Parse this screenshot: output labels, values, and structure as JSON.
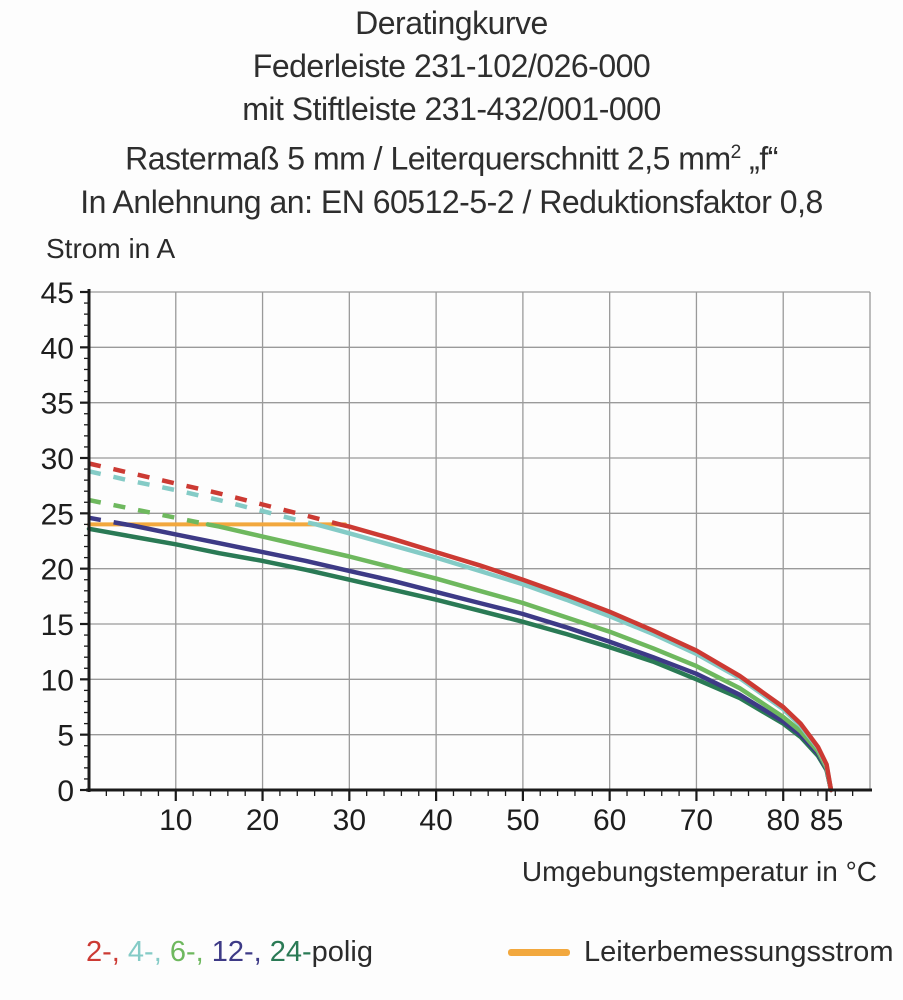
{
  "title": {
    "line1": "Deratingkurve",
    "line2": "Federleiste 231-102/026-000",
    "line3": "mit Stiftleiste 231-432/001-000",
    "line4_pre": "Rastermaß 5 mm / Leiterquerschnitt 2,5 mm",
    "line4_sup": "2",
    "line4_post": " „f“",
    "line5": "In Anlehnung an: EN 60512-5-2 / Reduktionsfaktor 0,8"
  },
  "chart_data": {
    "type": "line",
    "title": "Deratingkurve Federleiste 231-102/026-000 mit Stiftleiste 231-432/001-000",
    "xlabel": "Umgebungstemperatur in °C",
    "ylabel": "Strom in A",
    "grid": true,
    "x_axis": {
      "min": 0,
      "max": 90,
      "ticks": [
        10,
        20,
        30,
        40,
        50,
        60,
        70,
        80,
        85
      ],
      "grid_values": [
        10,
        20,
        30,
        40,
        50,
        60,
        70,
        80
      ],
      "minor_step": 2,
      "minor_max": 88
    },
    "y_axis": {
      "min": 0,
      "max": 45,
      "ticks": [
        0,
        5,
        10,
        15,
        20,
        25,
        30,
        35,
        40,
        45
      ],
      "grid_values": [
        5,
        10,
        15,
        20,
        25,
        30,
        35,
        40,
        45
      ],
      "minor_step": 1
    },
    "dash_note": "curve segments above 24 A (Leiterbemessungsstrom) are dashed",
    "series": [
      {
        "name": "Leiterbemessungsstrom",
        "color": "#f2a83e",
        "width": 4,
        "dash_until": null,
        "x": [
          0,
          29.5
        ],
        "y": [
          24,
          24
        ]
      },
      {
        "name": "24-polig",
        "color": "#2a7a55",
        "width": 4.5,
        "dash_until": null,
        "x": [
          0,
          5,
          10,
          15,
          20,
          25,
          30,
          35,
          40,
          45,
          50,
          55,
          60,
          65,
          70,
          75,
          80,
          82,
          84,
          85,
          85.5
        ],
        "y": [
          23.6,
          22.9,
          22.2,
          21.4,
          20.7,
          19.9,
          19,
          18.1,
          17.2,
          16.2,
          15.2,
          14.1,
          12.9,
          11.6,
          10,
          8.3,
          6,
          4.8,
          3.1,
          1.8,
          0
        ]
      },
      {
        "name": "12-polig",
        "color": "#3d3a86",
        "width": 4.5,
        "dash_until": 4.2,
        "x": [
          0,
          4.2,
          5,
          10,
          15,
          20,
          25,
          30,
          35,
          40,
          45,
          50,
          55,
          60,
          65,
          70,
          75,
          80,
          82,
          84,
          85,
          85.5
        ],
        "y": [
          24.6,
          24,
          23.9,
          23.1,
          22.3,
          21.5,
          20.7,
          19.8,
          18.9,
          17.9,
          16.9,
          15.9,
          14.7,
          13.4,
          12,
          10.5,
          8.6,
          6.2,
          5,
          3.3,
          1.9,
          0
        ]
      },
      {
        "name": "6-polig",
        "color": "#6eb85e",
        "width": 4.5,
        "dash_until": 13.7,
        "x": [
          0,
          5,
          10,
          13.7,
          15,
          20,
          25,
          30,
          35,
          40,
          45,
          50,
          55,
          60,
          65,
          70,
          75,
          80,
          82,
          84,
          85,
          85.5
        ],
        "y": [
          26.2,
          25.4,
          24.6,
          24,
          23.8,
          22.9,
          22,
          21.1,
          20.1,
          19.1,
          18,
          16.9,
          15.6,
          14.3,
          12.8,
          11.2,
          9.2,
          6.6,
          5.3,
          3.5,
          2,
          0
        ]
      },
      {
        "name": "4-polig",
        "color": "#84cbc6",
        "width": 4.5,
        "dash_until": 26.2,
        "x": [
          0,
          5,
          10,
          15,
          20,
          25,
          26.2,
          30,
          35,
          40,
          45,
          50,
          55,
          60,
          65,
          70,
          75,
          80,
          82,
          84,
          85,
          85.5
        ],
        "y": [
          28.8,
          27.9,
          27.1,
          26.2,
          25.2,
          24.2,
          24,
          23.2,
          22.1,
          21,
          19.8,
          18.6,
          17.2,
          15.7,
          14.1,
          12.3,
          10.1,
          7.3,
          5.8,
          3.8,
          2.2,
          0
        ]
      },
      {
        "name": "2-polig",
        "color": "#cc3a33",
        "width": 4.5,
        "dash_until": 28.9,
        "x": [
          0,
          5,
          10,
          15,
          20,
          25,
          28.9,
          30,
          35,
          40,
          45,
          50,
          55,
          60,
          65,
          70,
          75,
          80,
          82,
          84,
          85,
          85.5
        ],
        "y": [
          29.5,
          28.6,
          27.7,
          26.8,
          25.8,
          24.8,
          24,
          23.8,
          22.7,
          21.5,
          20.3,
          19,
          17.6,
          16.1,
          14.4,
          12.6,
          10.3,
          7.5,
          6,
          3.9,
          2.3,
          0
        ]
      }
    ]
  },
  "legend": {
    "poles": [
      {
        "label": "2-, ",
        "color": "#cc3a33"
      },
      {
        "label": "4-, ",
        "color": "#84cbc6"
      },
      {
        "label": "6-, ",
        "color": "#6eb85e"
      },
      {
        "label": "12-, ",
        "color": "#3d3a86"
      },
      {
        "label": "24-",
        "color": "#2a7a55"
      }
    ],
    "suffix": "polig",
    "rated_label": "Leiterbemessungsstrom",
    "rated_color": "#f2a83e"
  },
  "colors": {
    "grid": "#9a9a9a",
    "axis": "#1a1a1a",
    "text": "#2b2b2b"
  }
}
